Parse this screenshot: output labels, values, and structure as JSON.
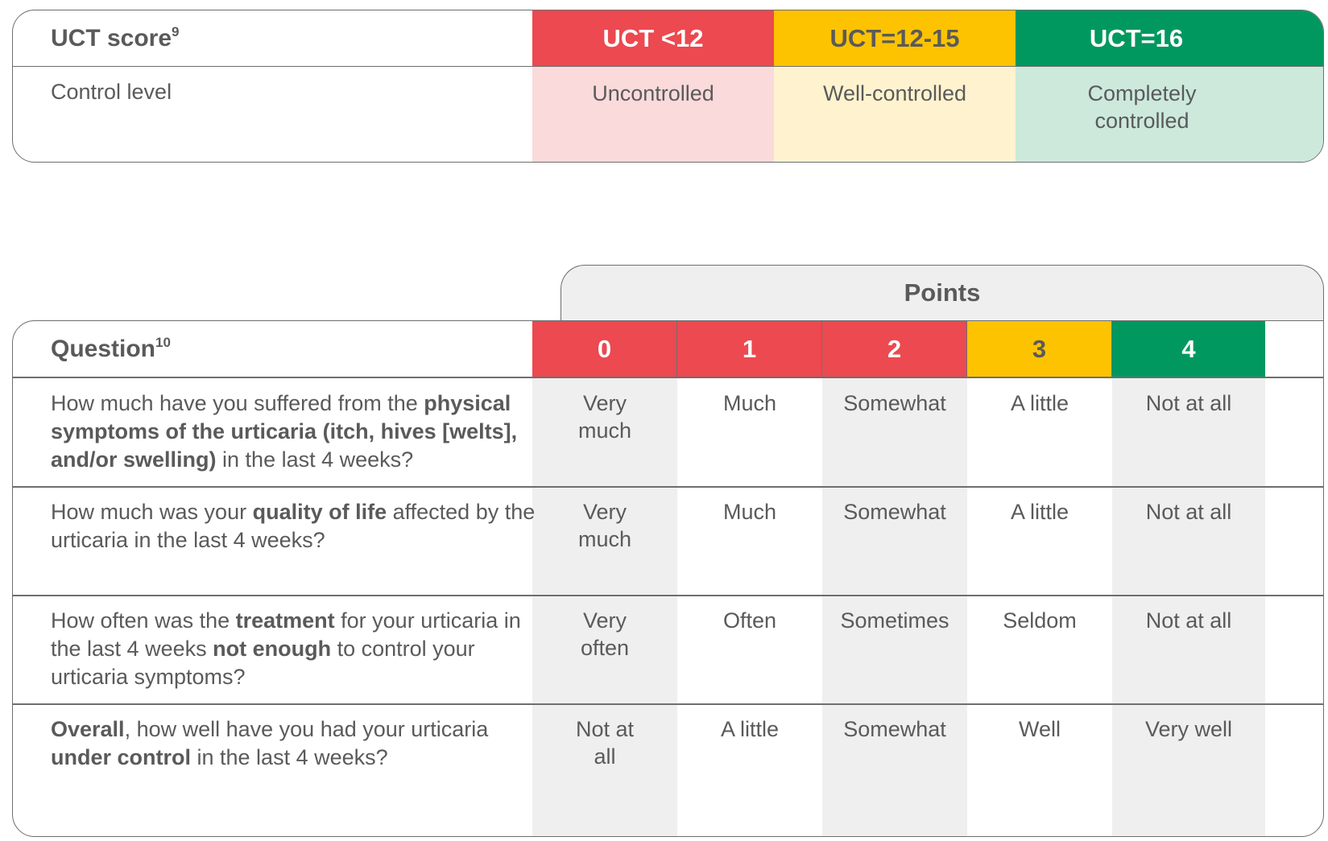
{
  "uct_table": {
    "header_label": "UCT score",
    "header_ref": "9",
    "row_label": "Control level",
    "scores": [
      {
        "label": "UCT <12",
        "level": "Uncontrolled",
        "color": "#ec4950",
        "tint": "#fadada"
      },
      {
        "label": "UCT=12-15",
        "level": "Well-controlled",
        "color": "#fdc300",
        "tint": "#fff3cf",
        "label_color": "#5a5a5a"
      },
      {
        "label": "UCT=16",
        "level": "Completely controlled",
        "color": "#00985f",
        "tint": "#cce9dc"
      }
    ]
  },
  "question_table": {
    "points_label": "Points",
    "header_label": "Question",
    "header_ref": "10",
    "points": [
      {
        "value": "0",
        "color": "#ec4950"
      },
      {
        "value": "1",
        "color": "#ec4950"
      },
      {
        "value": "2",
        "color": "#ec4950"
      },
      {
        "value": "3",
        "color": "#fdc300",
        "text_color": "#5a5a5a"
      },
      {
        "value": "4",
        "color": "#00985f"
      }
    ],
    "rows": [
      {
        "question": [
          {
            "t": "How much have you suffered from the "
          },
          {
            "t": "physical symptoms of the urticaria (itch, hives [welts], and/or swelling)",
            "b": true
          },
          {
            "t": " in the last 4 weeks?"
          }
        ],
        "answers": [
          "Very much",
          "Much",
          "Somewhat",
          "A little",
          "Not at all"
        ]
      },
      {
        "question": [
          {
            "t": "How much was your "
          },
          {
            "t": "quality of life",
            "b": true
          },
          {
            "t": " affected by the urticaria in the last 4 weeks?"
          }
        ],
        "answers": [
          "Very much",
          "Much",
          "Somewhat",
          "A little",
          "Not at all"
        ]
      },
      {
        "question": [
          {
            "t": "How often was the "
          },
          {
            "t": "treatment",
            "b": true
          },
          {
            "t": " for your urticaria in the last 4 weeks "
          },
          {
            "t": "not enough",
            "b": true
          },
          {
            "t": " to control your urticaria symptoms?"
          }
        ],
        "answers": [
          "Very often",
          "Often",
          "Sometimes",
          "Seldom",
          "Not at all"
        ]
      },
      {
        "question": [
          {
            "t": "Overall",
            "b": true
          },
          {
            "t": ", how well have you had your urticaria "
          },
          {
            "t": "under control",
            "b": true
          },
          {
            "t": " in the last 4 weeks?"
          }
        ],
        "answers": [
          "Not at all",
          "A little",
          "Somewhat",
          "Well",
          "Very well"
        ]
      }
    ]
  }
}
